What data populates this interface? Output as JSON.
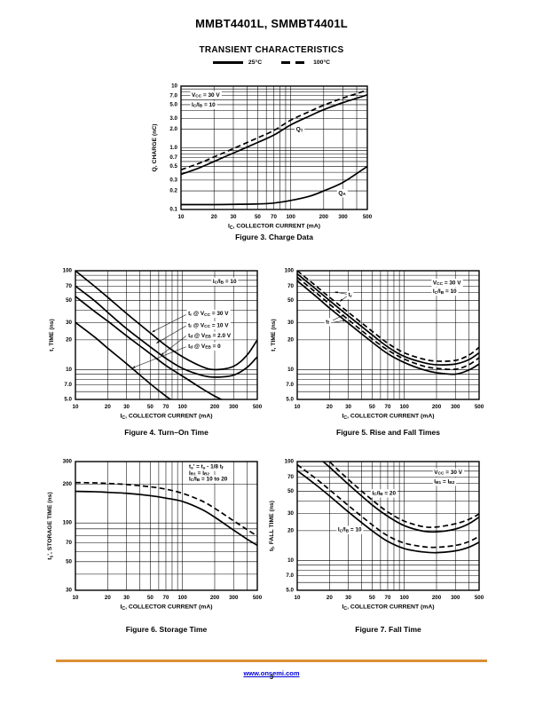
{
  "page": {
    "title": "MMBT4401L, SMMBT4401L",
    "subtitle": "TRANSIENT CHARACTERISTICS",
    "legend": {
      "solid_label": "25°C",
      "dashed_label": "100°C"
    },
    "footer": {
      "link_text": "www.onsemi.com",
      "page_number": "3",
      "rule_color": "#DB8F33",
      "link_color": "#0000D8"
    }
  },
  "chart_data": [
    {
      "id": "fig3",
      "type": "line",
      "caption": "Figure 3. Charge Data",
      "xlabel": "I_{C}, COLLECTOR CURRENT (mA)",
      "ylabel": "Q, CHARGE (nC)",
      "xscale": "log",
      "yscale": "log",
      "xlim": [
        10,
        500
      ],
      "ylim": [
        0.1,
        10
      ],
      "x_ticks": [
        [
          10,
          "10"
        ],
        [
          20,
          "20"
        ],
        [
          30,
          "30"
        ],
        [
          50,
          "50"
        ],
        [
          70,
          "70"
        ],
        [
          100,
          "100"
        ],
        [
          200,
          "200"
        ],
        [
          300,
          "300"
        ],
        [
          500,
          "500"
        ]
      ],
      "y_ticks": [
        [
          10,
          "10"
        ],
        [
          7,
          "7.0"
        ],
        [
          5,
          "5.0"
        ],
        [
          3,
          "3.0"
        ],
        [
          2,
          "2.0"
        ],
        [
          1,
          "1.0"
        ],
        [
          0.7,
          "0.7"
        ],
        [
          0.5,
          "0.5"
        ],
        [
          0.3,
          "0.3"
        ],
        [
          0.2,
          "0.2"
        ],
        [
          0.1,
          "0.1"
        ]
      ],
      "annotations": [
        {
          "text": "V_{CC} = 30 V",
          "x": 12.5,
          "y": 7.2,
          "bg": true
        },
        {
          "text": "I_{C}/I_{B} = 10",
          "x": 12.5,
          "y": 5.0,
          "bg": true
        },
        {
          "text": "Q_{T}",
          "x": 112,
          "y": 2.0,
          "bg": true
        },
        {
          "text": "Q_{A}",
          "x": 272,
          "y": 0.185,
          "bg": true
        }
      ],
      "series": [
        {
          "name": "QT @ 100°C",
          "style": "dashed",
          "x": [
            10,
            15,
            20,
            30,
            50,
            70,
            100,
            150,
            200,
            300,
            500
          ],
          "y": [
            0.44,
            0.57,
            0.71,
            0.97,
            1.45,
            1.9,
            2.8,
            3.9,
            4.9,
            6.4,
            8.6
          ]
        },
        {
          "name": "QT @ 25°C",
          "style": "solid",
          "x": [
            10,
            15,
            20,
            30,
            50,
            70,
            100,
            150,
            200,
            300,
            500
          ],
          "y": [
            0.37,
            0.48,
            0.6,
            0.82,
            1.22,
            1.6,
            2.35,
            3.3,
            4.15,
            5.4,
            7.2
          ]
        },
        {
          "name": "QA @ 25°C",
          "style": "solid",
          "x": [
            10,
            15,
            20,
            30,
            50,
            70,
            100,
            150,
            200,
            300,
            500
          ],
          "y": [
            0.12,
            0.12,
            0.12,
            0.121,
            0.123,
            0.127,
            0.14,
            0.165,
            0.2,
            0.275,
            0.5
          ]
        }
      ]
    },
    {
      "id": "fig4",
      "type": "line",
      "caption": "Figure 4. Turn–On Time",
      "xlabel": "I_{C}, COLLECTOR CURRENT (mA)",
      "ylabel": "t, TIME (ns)",
      "xscale": "log",
      "yscale": "log",
      "xlim": [
        10,
        500
      ],
      "ylim": [
        5,
        100
      ],
      "x_ticks": [
        [
          10,
          "10"
        ],
        [
          20,
          "20"
        ],
        [
          30,
          "30"
        ],
        [
          50,
          "50"
        ],
        [
          70,
          "70"
        ],
        [
          100,
          "100"
        ],
        [
          200,
          "200"
        ],
        [
          300,
          "300"
        ],
        [
          500,
          "500"
        ]
      ],
      "y_ticks": [
        [
          100,
          "100"
        ],
        [
          70,
          "70"
        ],
        [
          50,
          "50"
        ],
        [
          30,
          "30"
        ],
        [
          20,
          "20"
        ],
        [
          10,
          "10"
        ],
        [
          7,
          "7.0"
        ],
        [
          5,
          "5.0"
        ]
      ],
      "annotations": [
        {
          "text": "I_{C}/I_{B} = 10",
          "x": 192,
          "y": 78,
          "bg": true
        },
        {
          "text": "t_{r} @ V_{CC} = 30 V",
          "x": 113,
          "y": 37,
          "bg": true,
          "arrows": [
            [
              108,
              36,
              52,
              24
            ]
          ]
        },
        {
          "text": "t_{r} @ V_{CC} = 10 V",
          "x": 113,
          "y": 28.2,
          "bg": true,
          "arrows": [
            [
              108,
              27.7,
              57,
              18.5
            ]
          ]
        },
        {
          "text": "t_{d} @ V_{EB} = 2.0 V",
          "x": 113,
          "y": 22.2,
          "bg": true,
          "arrows": [
            [
              108,
              21.9,
              63,
              14
            ]
          ]
        },
        {
          "text": "t_{d} @ V_{EB} = 0",
          "x": 113,
          "y": 17.3,
          "bg": true,
          "arrows": [
            [
              108,
              17,
              34,
              10.4
            ]
          ]
        }
      ],
      "series": [
        {
          "name": "tr @ VCC = 10 V",
          "style": "solid",
          "x": [
            10,
            15,
            20,
            30,
            50,
            70,
            100,
            150,
            200,
            300,
            400,
            500
          ],
          "y": [
            100,
            70,
            54,
            37,
            23.5,
            17.5,
            13.5,
            10.8,
            10,
            10.8,
            14,
            20
          ]
        },
        {
          "name": "tr @ VCC = 30 V",
          "style": "solid",
          "x": [
            10,
            15,
            20,
            30,
            50,
            70,
            100,
            150,
            200,
            300,
            400,
            500
          ],
          "y": [
            70,
            50,
            38,
            26,
            17,
            13,
            10.3,
            8.8,
            8.4,
            8.8,
            10.5,
            13.5
          ]
        },
        {
          "name": "td @ VEB = 2.0 V",
          "style": "solid",
          "x": [
            10,
            15,
            20,
            30,
            50,
            70,
            100,
            150,
            200,
            250
          ],
          "y": [
            55,
            39,
            31,
            22,
            14.5,
            11,
            8.6,
            6.5,
            5.4,
            4.8
          ]
        },
        {
          "name": "td @ VEB = 0",
          "style": "solid",
          "x": [
            10,
            15,
            20,
            30,
            50,
            70,
            80
          ],
          "y": [
            30,
            21.5,
            16.5,
            11.5,
            7.2,
            5.4,
            4.9
          ]
        }
      ]
    },
    {
      "id": "fig5",
      "type": "line",
      "caption": "Figure 5. Rise and Fall Times",
      "xlabel": "I_{C}, COLLECTOR CURRENT (mA)",
      "ylabel": "t, TIME (ns)",
      "xscale": "log",
      "yscale": "log",
      "xlim": [
        10,
        500
      ],
      "ylim": [
        5,
        100
      ],
      "x_ticks": [
        [
          10,
          "10"
        ],
        [
          20,
          "20"
        ],
        [
          30,
          "30"
        ],
        [
          50,
          "50"
        ],
        [
          70,
          "70"
        ],
        [
          100,
          "100"
        ],
        [
          200,
          "200"
        ],
        [
          300,
          "300"
        ],
        [
          500,
          "500"
        ]
      ],
      "y_ticks": [
        [
          100,
          "100"
        ],
        [
          70,
          "70"
        ],
        [
          50,
          "50"
        ],
        [
          30,
          "30"
        ],
        [
          20,
          "20"
        ],
        [
          10,
          "10"
        ],
        [
          7,
          "7.0"
        ],
        [
          5,
          "5.0"
        ]
      ],
      "annotations": [
        {
          "text": "V_{CC} = 30 V",
          "x": 185,
          "y": 76,
          "bg": true
        },
        {
          "text": "I_{C}/I_{B} = 10",
          "x": 185,
          "y": 62,
          "bg": true
        },
        {
          "text": "t_{r}",
          "x": 30,
          "y": 57,
          "bg": true,
          "arrows": [
            [
              29,
              58,
              22.5,
              61
            ],
            [
              29,
              55,
              25,
              49
            ]
          ]
        },
        {
          "text": "t_{f}",
          "x": 18.5,
          "y": 30.5,
          "bg": true,
          "arrows": [
            [
              21.5,
              31.5,
              27.5,
              36
            ],
            [
              21.5,
              30,
              28.5,
              31.5
            ]
          ]
        }
      ],
      "series": [
        {
          "name": "tr @ 100°C",
          "style": "dashed",
          "x": [
            10,
            15,
            20,
            30,
            50,
            70,
            100,
            150,
            200,
            300,
            400,
            500
          ],
          "y": [
            100,
            70,
            54,
            38,
            24.5,
            18.5,
            14.8,
            12.8,
            12.2,
            12.4,
            14,
            16.8
          ]
        },
        {
          "name": "tr @ 25°C",
          "style": "solid",
          "x": [
            10,
            15,
            20,
            30,
            50,
            70,
            100,
            150,
            200,
            300,
            400,
            500
          ],
          "y": [
            93,
            65,
            50,
            35,
            22.5,
            17,
            13.6,
            11.8,
            11.2,
            11.4,
            12.6,
            14.8
          ]
        },
        {
          "name": "tf @ 100°C",
          "style": "dashed",
          "x": [
            10,
            15,
            20,
            30,
            50,
            70,
            100,
            150,
            200,
            300,
            400,
            500
          ],
          "y": [
            86,
            60,
            46,
            32,
            20.5,
            15.8,
            12.8,
            10.9,
            10.3,
            10.1,
            11.2,
            13.2
          ]
        },
        {
          "name": "tf @ 25°C",
          "style": "solid",
          "x": [
            10,
            15,
            20,
            30,
            50,
            70,
            100,
            150,
            200,
            300,
            400,
            500
          ],
          "y": [
            79,
            55,
            42,
            29.5,
            19,
            14.5,
            11.8,
            10,
            9.3,
            9.0,
            9.9,
            11.4
          ]
        }
      ]
    },
    {
      "id": "fig6",
      "type": "line",
      "caption": "Figure 6. Storage Time",
      "xlabel": "I_{C}, COLLECTOR CURRENT (mA)",
      "ylabel": "t_{s}', STORAGE TIME (ns)",
      "xscale": "log",
      "yscale": "log",
      "xlim": [
        10,
        500
      ],
      "ylim": [
        30,
        300
      ],
      "x_ticks": [
        [
          10,
          "10"
        ],
        [
          20,
          "20"
        ],
        [
          30,
          "30"
        ],
        [
          50,
          "50"
        ],
        [
          70,
          "70"
        ],
        [
          100,
          "100"
        ],
        [
          200,
          "200"
        ],
        [
          300,
          "300"
        ],
        [
          500,
          "500"
        ]
      ],
      "y_ticks": [
        [
          300,
          "300"
        ],
        [
          200,
          "200"
        ],
        [
          100,
          "100"
        ],
        [
          70,
          "70"
        ],
        [
          50,
          "50"
        ],
        [
          30,
          "30"
        ]
      ],
      "annotations": [
        {
          "text": "t_{s}' = t_{s} - 1/8 t_{f}",
          "x": 115,
          "y": 274,
          "bg": true
        },
        {
          "text": "I_{B1} = I_{B2}",
          "x": 115,
          "y": 245,
          "bg": true
        },
        {
          "text": "I_{C}/I_{B} = 10 to 20",
          "x": 115,
          "y": 220,
          "bg": true
        }
      ],
      "series": [
        {
          "name": "ts @ 100°C",
          "style": "dashed",
          "x": [
            10,
            15,
            20,
            30,
            50,
            70,
            100,
            150,
            200,
            300,
            400,
            500
          ],
          "y": [
            206,
            205,
            203,
            199,
            191,
            183,
            170,
            149,
            130,
            104,
            89,
            79
          ]
        },
        {
          "name": "ts @ 25°C",
          "style": "solid",
          "x": [
            10,
            15,
            20,
            30,
            50,
            70,
            100,
            150,
            200,
            300,
            400,
            500
          ],
          "y": [
            176,
            175,
            173,
            170,
            163,
            156,
            147,
            128,
            111,
            88,
            75,
            67
          ]
        }
      ]
    },
    {
      "id": "fig7",
      "type": "line",
      "caption": "Figure 7. Fall Time",
      "xlabel": "I_{C}, COLLECTOR CURRENT (mA)",
      "ylabel": "t_{f}, FALL TIME (ns)",
      "xscale": "log",
      "yscale": "log",
      "xlim": [
        10,
        500
      ],
      "ylim": [
        5,
        100
      ],
      "x_ticks": [
        [
          10,
          "10"
        ],
        [
          20,
          "20"
        ],
        [
          30,
          "30"
        ],
        [
          50,
          "50"
        ],
        [
          70,
          "70"
        ],
        [
          100,
          "100"
        ],
        [
          200,
          "200"
        ],
        [
          300,
          "300"
        ],
        [
          500,
          "500"
        ]
      ],
      "y_ticks": [
        [
          100,
          "100"
        ],
        [
          70,
          "70"
        ],
        [
          50,
          "50"
        ],
        [
          30,
          "30"
        ],
        [
          20,
          "20"
        ],
        [
          10,
          "10"
        ],
        [
          7,
          "7.0"
        ],
        [
          5,
          "5.0"
        ]
      ],
      "annotations": [
        {
          "text": "V_{CC} = 30 V",
          "x": 190,
          "y": 78,
          "bg": true
        },
        {
          "text": "I_{B1} = I_{B2}",
          "x": 190,
          "y": 63,
          "bg": true
        },
        {
          "text": "I_{C}/I_{B} = 20",
          "x": 50,
          "y": 48,
          "bg": true
        },
        {
          "text": "I_{C}/I_{B} = 10",
          "x": 24,
          "y": 20.5,
          "bg": true
        }
      ],
      "series": [
        {
          "name": "IC/IB=20 @ 100°C",
          "style": "dashed",
          "x": [
            18,
            20,
            30,
            50,
            70,
            100,
            150,
            200,
            300,
            400,
            500
          ],
          "y": [
            115,
            100,
            66,
            41,
            31,
            25,
            22,
            21.8,
            23.5,
            26,
            29.5
          ]
        },
        {
          "name": "IC/IB=20 @ 25°C",
          "style": "solid",
          "x": [
            15,
            20,
            30,
            50,
            70,
            100,
            150,
            200,
            300,
            400,
            500
          ],
          "y": [
            115,
            88,
            59,
            36.5,
            28,
            22.5,
            19.8,
            19.5,
            20.8,
            23.5,
            27.5
          ]
        },
        {
          "name": "IC/IB=10 @ 100°C",
          "style": "dashed",
          "x": [
            10,
            15,
            20,
            30,
            50,
            70,
            100,
            150,
            200,
            300,
            400,
            500
          ],
          "y": [
            93,
            67,
            52,
            36,
            23,
            17.8,
            15,
            13.8,
            13.6,
            14.2,
            15.5,
            17.5
          ]
        },
        {
          "name": "IC/IB=10 @ 25°C",
          "style": "solid",
          "x": [
            10,
            15,
            20,
            30,
            50,
            70,
            100,
            150,
            200,
            300,
            400,
            500
          ],
          "y": [
            81,
            58,
            45,
            31,
            20,
            15.6,
            13.2,
            12.2,
            12.0,
            12.5,
            13.6,
            15.3
          ]
        }
      ]
    }
  ]
}
